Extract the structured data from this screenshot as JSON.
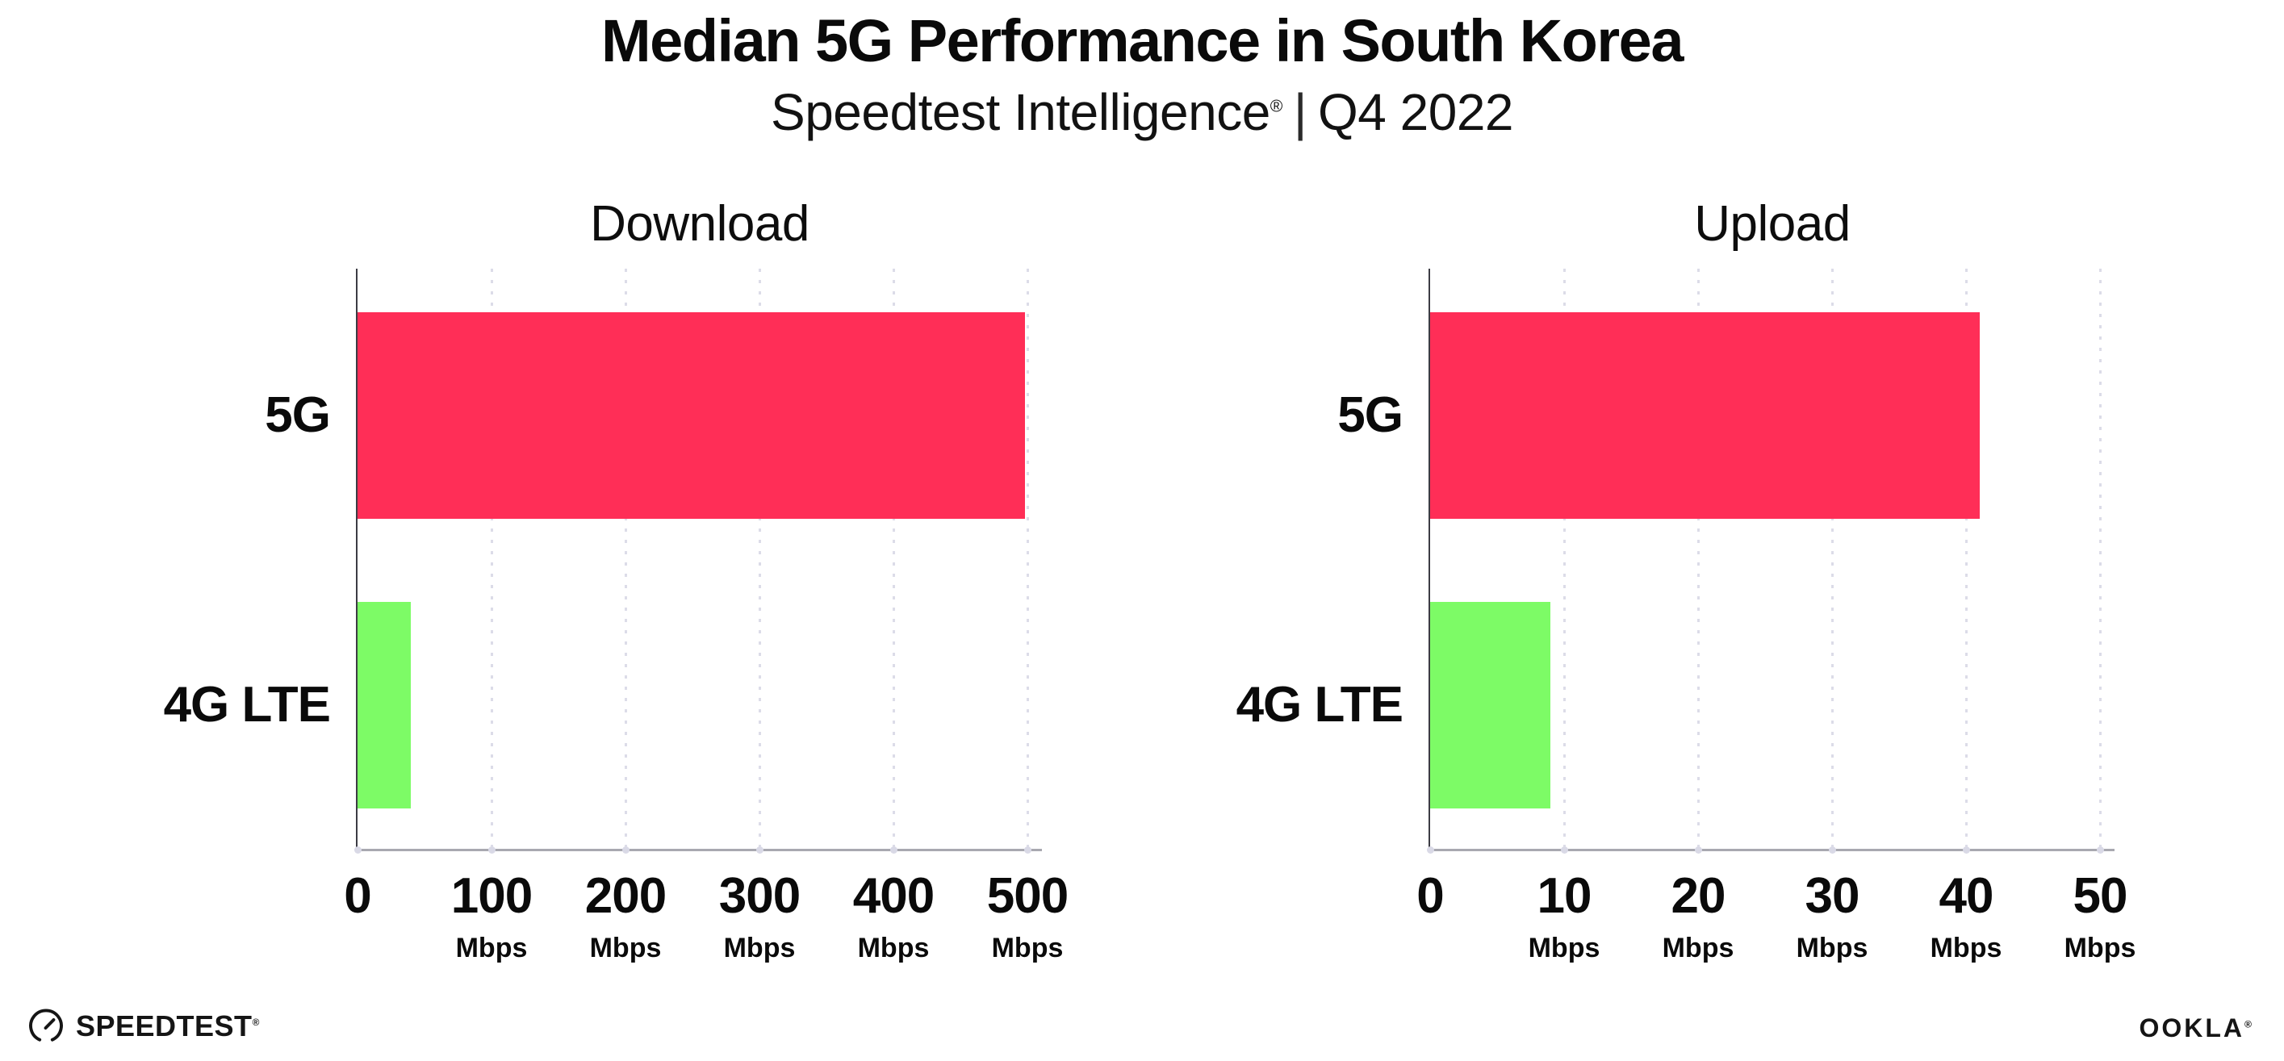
{
  "page": {
    "title": "Median 5G Performance in South Korea",
    "subtitle": {
      "brand": "Speedtest Intelligence",
      "registered": "®",
      "separator": "|",
      "period": "Q4 2022"
    }
  },
  "chart_data": [
    {
      "type": "bar",
      "orientation": "horizontal",
      "title": "Download",
      "categories": [
        "5G",
        "4G LTE"
      ],
      "values": [
        498,
        40
      ],
      "value_unit": "Mbps",
      "xlim": [
        0,
        500
      ],
      "xticks": [
        0,
        100,
        200,
        300,
        400,
        500
      ],
      "xtick_unit": "Mbps",
      "grid": "dotted vertical gridlines",
      "legend": "none",
      "bar_colors": [
        "#ff2e57",
        "#7dfb66"
      ]
    },
    {
      "type": "bar",
      "orientation": "horizontal",
      "title": "Upload",
      "categories": [
        "5G",
        "4G LTE"
      ],
      "values": [
        41,
        9
      ],
      "value_unit": "Mbps",
      "xlim": [
        0,
        50
      ],
      "xticks": [
        0,
        10,
        20,
        30,
        40,
        50
      ],
      "xtick_unit": "Mbps",
      "grid": "dotted vertical gridlines",
      "legend": "none",
      "bar_colors": [
        "#ff2e57",
        "#7dfb66"
      ]
    }
  ],
  "colors": {
    "bar_5g": "#ff2e57",
    "bar_4g_lte": "#7dfb66",
    "gridline": "#dcdce8",
    "x_axis": "#a8a8b0",
    "y_axis": "#3c3c44",
    "text": "#0a0a0a",
    "background": "#ffffff"
  },
  "footer": {
    "speedtest_logo_text": "SPEEDTEST",
    "speedtest_registered": "®",
    "ookla_logo_text": "OOKLA",
    "ookla_registered": "®"
  }
}
